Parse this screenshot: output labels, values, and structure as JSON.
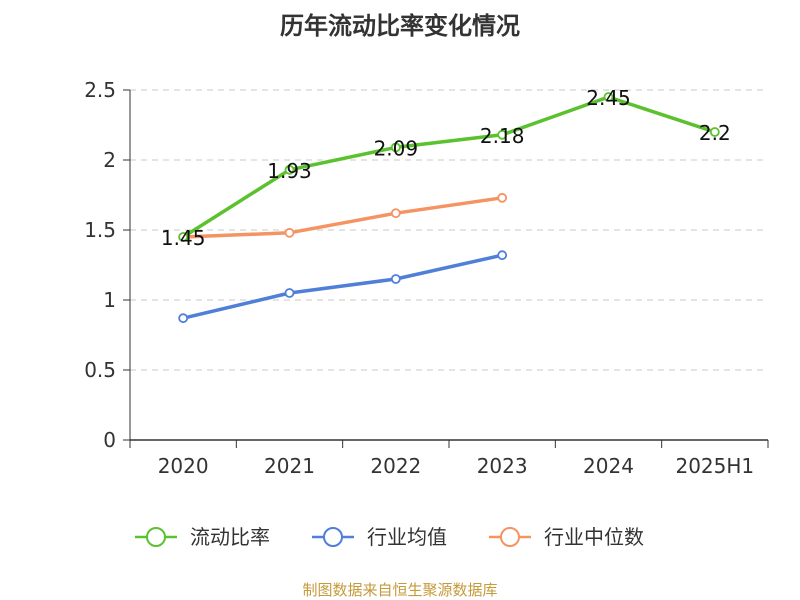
{
  "chart_data": {
    "type": "line",
    "title": "历年流动比率变化情况",
    "xlabel": "",
    "ylabel": "",
    "categories": [
      "2020",
      "2021",
      "2022",
      "2023",
      "2024",
      "2025H1"
    ],
    "ylim": [
      0,
      2.5
    ],
    "yticks": [
      "0",
      "0.5",
      "1",
      "1.5",
      "2",
      "2.5"
    ],
    "grid": true,
    "legend_position": "bottom",
    "series": [
      {
        "name": "流动比率",
        "color": "#5cc12e",
        "values": [
          1.45,
          1.93,
          2.09,
          2.18,
          2.45,
          2.2
        ],
        "labels": [
          "1.45",
          "1.93",
          "2.09",
          "2.18",
          "2.45",
          "2.2"
        ]
      },
      {
        "name": "行业均值",
        "color": "#4f7fd8",
        "values": [
          0.87,
          1.05,
          1.15,
          1.32,
          null,
          null
        ]
      },
      {
        "name": "行业中位数",
        "color": "#f59363",
        "values": [
          1.45,
          1.48,
          1.62,
          1.73,
          null,
          null
        ]
      }
    ]
  },
  "source": {
    "text": "制图数据来自恒生聚源数据库",
    "color": "#c59a3a"
  }
}
